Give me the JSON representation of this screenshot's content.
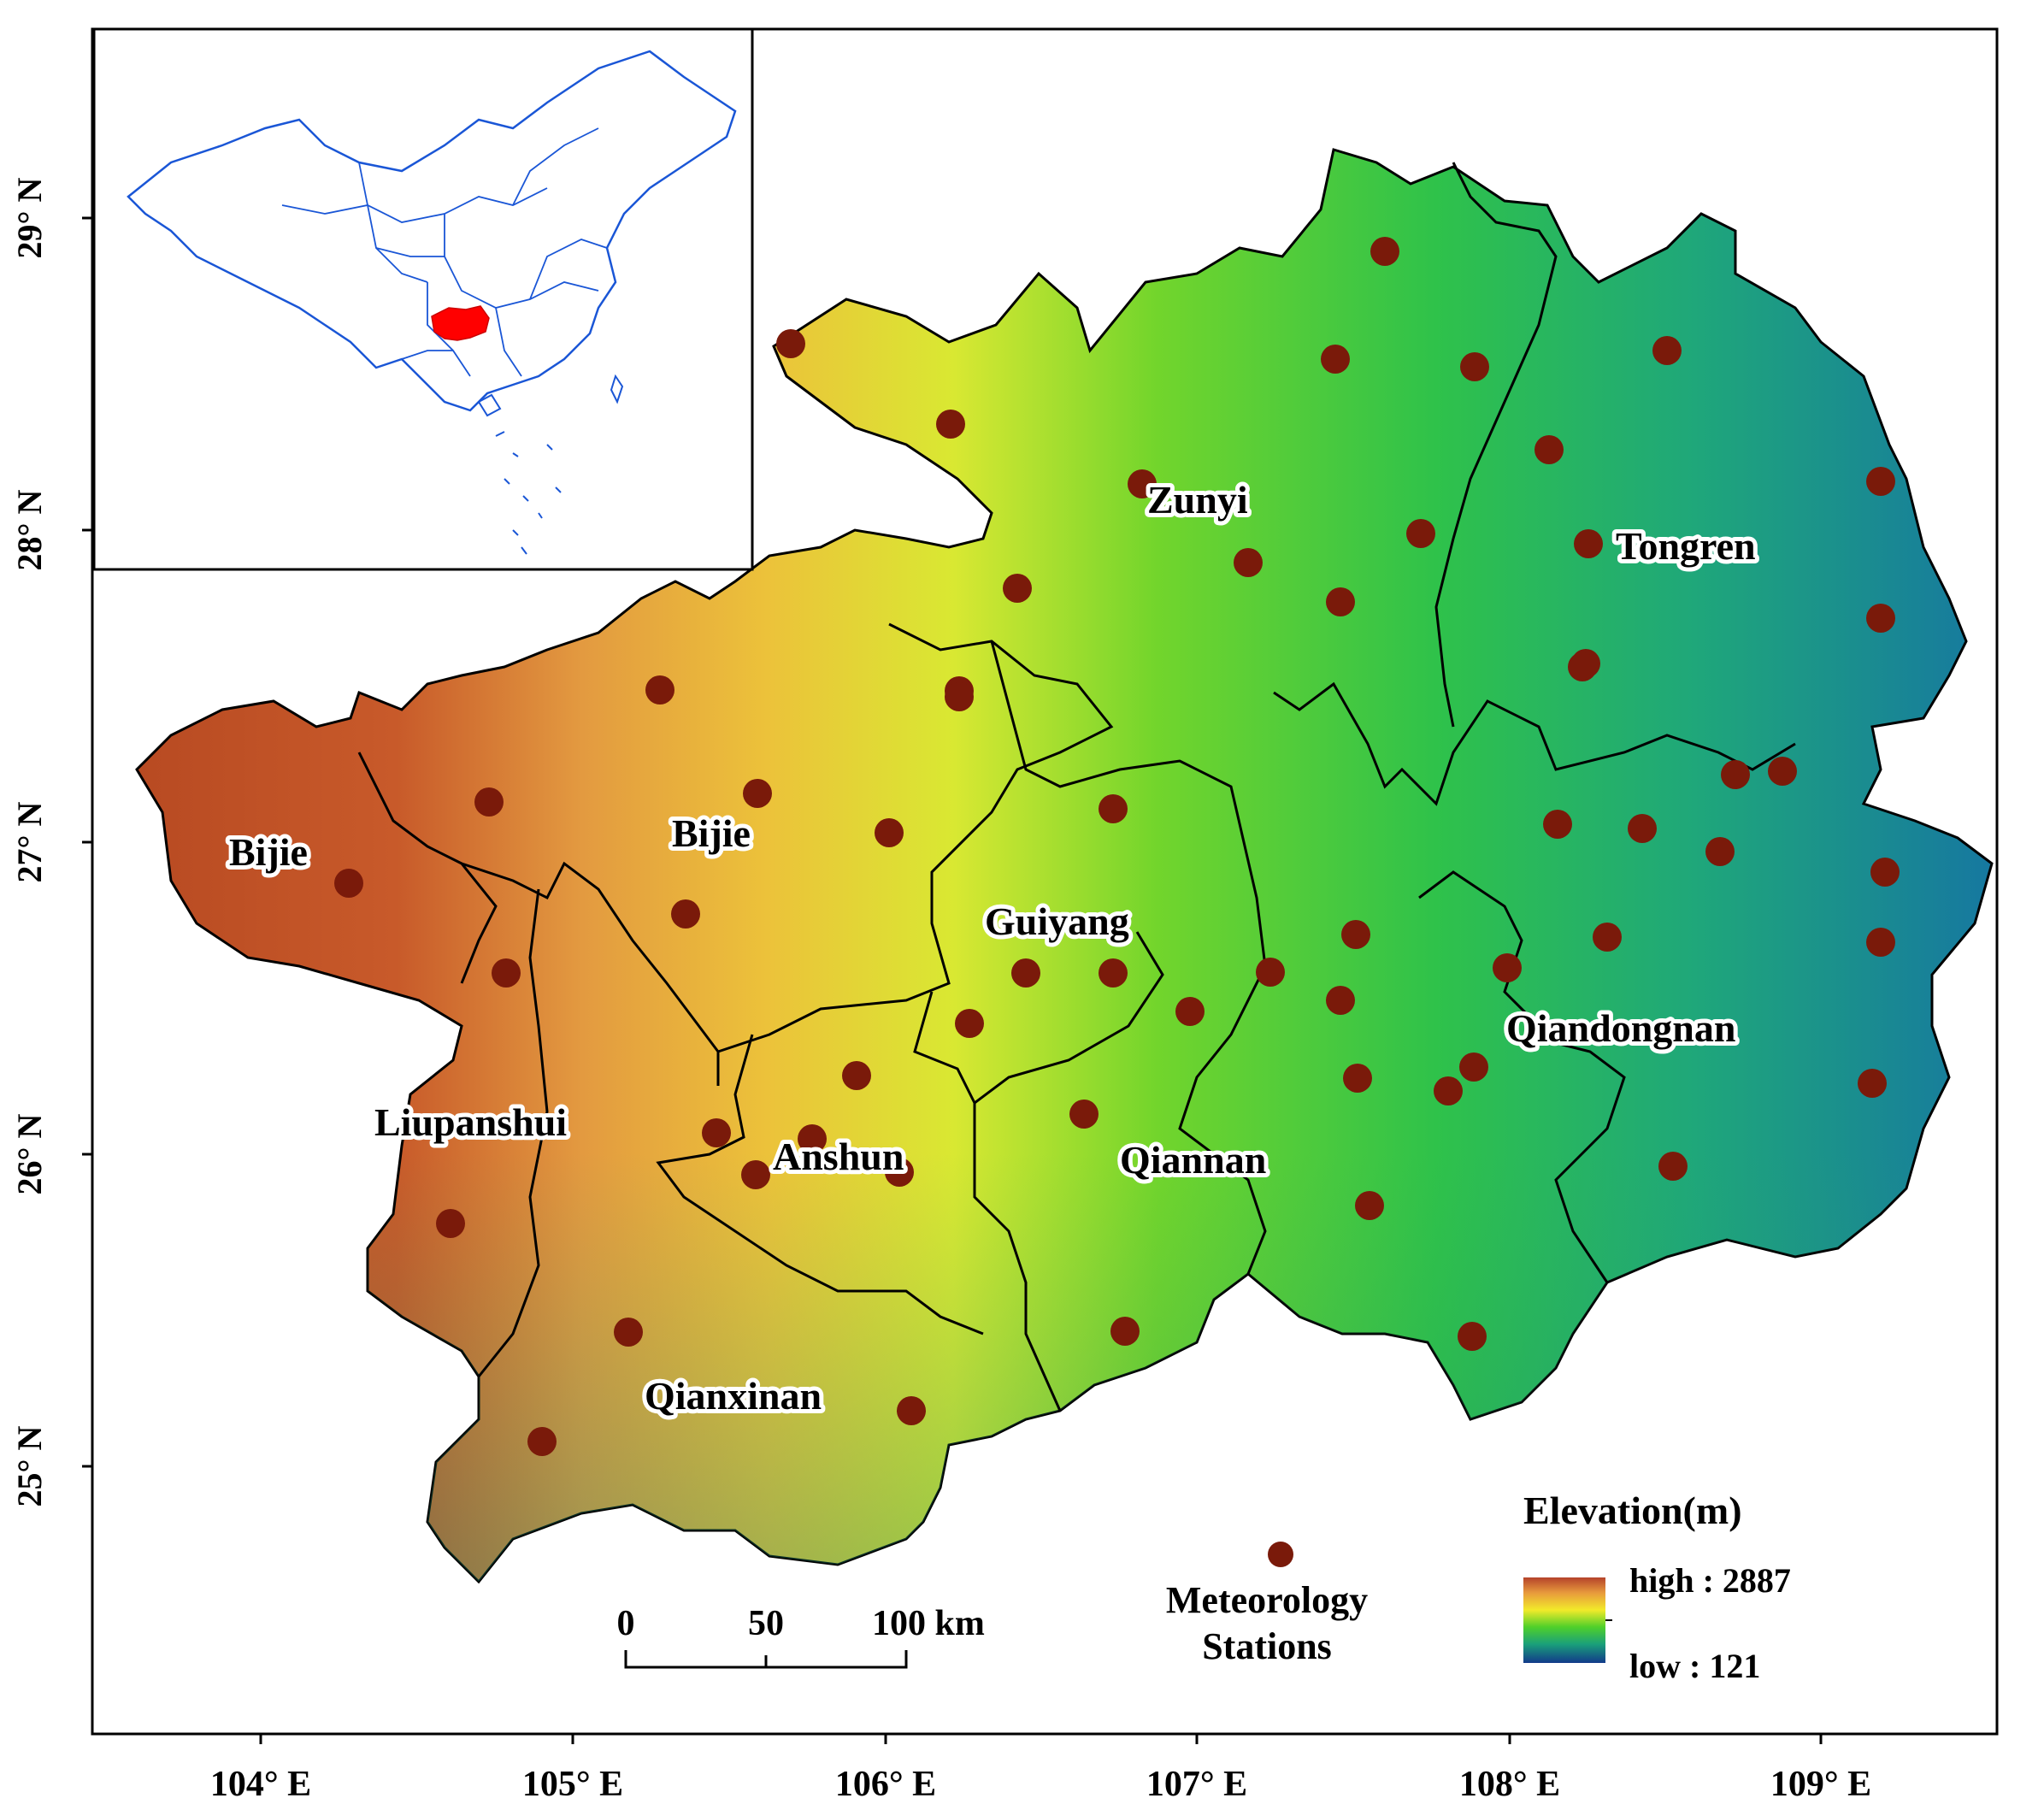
{
  "map": {
    "longitude_labels": [
      "104° E",
      "105° E",
      "106° E",
      "107° E",
      "108° E",
      "109° E"
    ],
    "latitude_labels": [
      "25° N",
      "26° N",
      "27° N",
      "28° N",
      "29° N"
    ],
    "regions": [
      {
        "name": "Bijie"
      },
      {
        "name": "Bijie"
      },
      {
        "name": "Zunyi"
      },
      {
        "name": "Tongren"
      },
      {
        "name": "Guiyang"
      },
      {
        "name": "Qiandongnan"
      },
      {
        "name": "Liupanshui"
      },
      {
        "name": "Anshun"
      },
      {
        "name": "Qiannan"
      },
      {
        "name": "Qianxinan"
      }
    ],
    "station_color": "#7a1a0a",
    "border_color": "#000000",
    "highlight_color": "#ff0000",
    "inset_outline_color": "#1a56d6"
  },
  "legend": {
    "elevation_title": "Elevation(m)",
    "high_label": "high : 2887",
    "low_label": "low : 121",
    "stations_line1": "Meteorology",
    "stations_line2": "Stations"
  },
  "scale_bar": {
    "labels": [
      "0",
      "50",
      "100 km"
    ]
  }
}
